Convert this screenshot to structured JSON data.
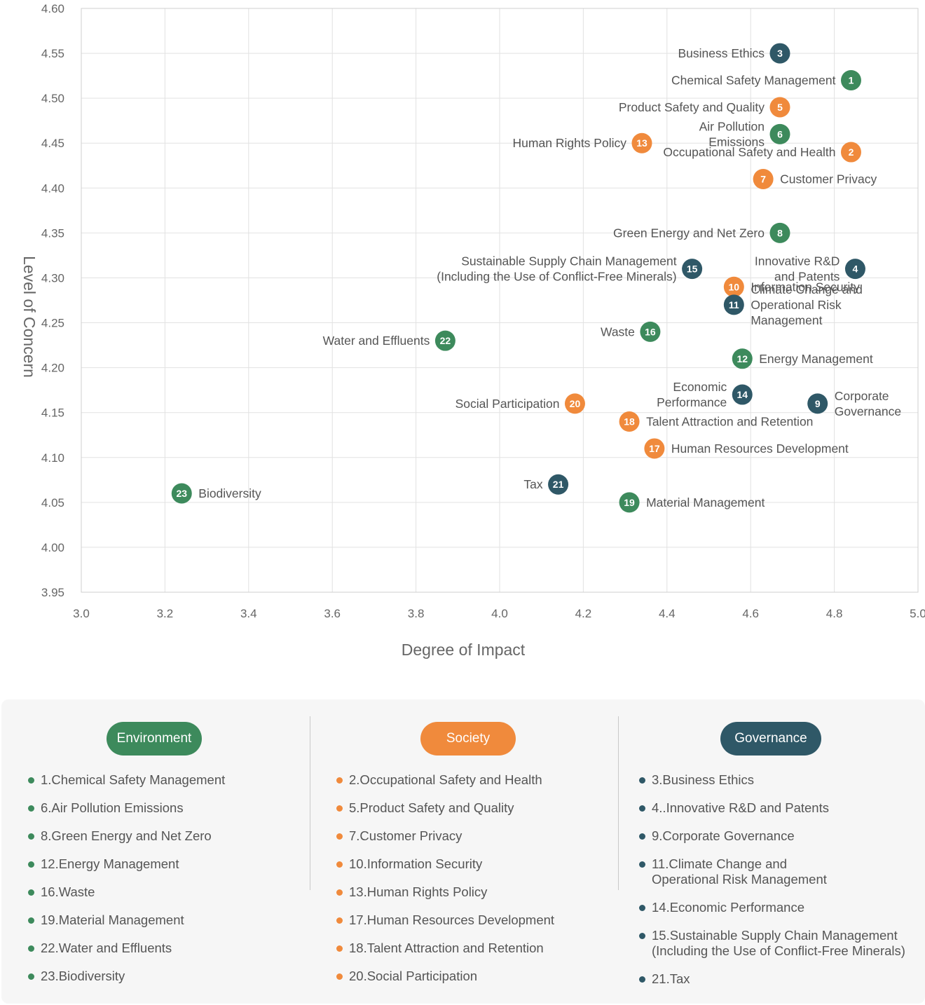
{
  "chart_data": {
    "type": "scatter",
    "xlabel": "Degree of Impact",
    "ylabel": "Level of Concern",
    "xlim": [
      3.0,
      5.0
    ],
    "ylim": [
      3.95,
      4.6
    ],
    "x_ticks": [
      "3.0",
      "3.2",
      "3.4",
      "3.6",
      "3.8",
      "4.0",
      "4.2",
      "4.4",
      "4.6",
      "4.8",
      "5.0"
    ],
    "y_ticks": [
      "3.95",
      "4.00",
      "4.05",
      "4.10",
      "4.15",
      "4.20",
      "4.25",
      "4.30",
      "4.35",
      "4.40",
      "4.45",
      "4.50",
      "4.55",
      "4.60"
    ],
    "grid": true,
    "category_colors": {
      "Environment": "#3d8a5c",
      "Society": "#f08a3c",
      "Governance": "#2f5867"
    },
    "points": [
      {
        "id": 1,
        "category": "Environment",
        "x": 4.84,
        "y": 4.52,
        "label_lines": [
          "Chemical Safety Management"
        ],
        "label_side": "left"
      },
      {
        "id": 2,
        "category": "Society",
        "x": 4.84,
        "y": 4.44,
        "label_lines": [
          "Occupational Safety and Health"
        ],
        "label_side": "left"
      },
      {
        "id": 3,
        "category": "Governance",
        "x": 4.67,
        "y": 4.55,
        "label_lines": [
          "Business Ethics"
        ],
        "label_side": "left"
      },
      {
        "id": 4,
        "category": "Governance",
        "x": 4.85,
        "y": 4.31,
        "label_lines": [
          "Innovative R&D",
          "and Patents"
        ],
        "label_side": "left"
      },
      {
        "id": 5,
        "category": "Society",
        "x": 4.67,
        "y": 4.49,
        "label_lines": [
          "Product Safety and Quality"
        ],
        "label_side": "left"
      },
      {
        "id": 6,
        "category": "Environment",
        "x": 4.67,
        "y": 4.46,
        "label_lines": [
          "Air Pollution",
          "Emissions"
        ],
        "label_side": "left"
      },
      {
        "id": 7,
        "category": "Society",
        "x": 4.63,
        "y": 4.41,
        "label_lines": [
          "Customer Privacy"
        ],
        "label_side": "right"
      },
      {
        "id": 8,
        "category": "Environment",
        "x": 4.67,
        "y": 4.35,
        "label_lines": [
          "Green Energy and Net Zero"
        ],
        "label_side": "left"
      },
      {
        "id": 9,
        "category": "Governance",
        "x": 4.76,
        "y": 4.16,
        "label_lines": [
          "Corporate",
          "Governance"
        ],
        "label_side": "right"
      },
      {
        "id": 10,
        "category": "Society",
        "x": 4.56,
        "y": 4.29,
        "label_lines": [
          "Information Security"
        ],
        "label_side": "right"
      },
      {
        "id": 11,
        "category": "Governance",
        "x": 4.56,
        "y": 4.27,
        "label_lines": [
          "Climate Change and",
          "Operational Risk",
          "Management"
        ],
        "label_side": "right"
      },
      {
        "id": 12,
        "category": "Environment",
        "x": 4.58,
        "y": 4.21,
        "label_lines": [
          "Energy Management"
        ],
        "label_side": "right"
      },
      {
        "id": 13,
        "category": "Society",
        "x": 4.34,
        "y": 4.45,
        "label_lines": [
          "Human Rights Policy"
        ],
        "label_side": "left"
      },
      {
        "id": 14,
        "category": "Governance",
        "x": 4.58,
        "y": 4.17,
        "label_lines": [
          "Economic",
          "Performance"
        ],
        "label_side": "left"
      },
      {
        "id": 15,
        "category": "Governance",
        "x": 4.46,
        "y": 4.31,
        "label_lines": [
          "Sustainable Supply Chain Management",
          "(Including the  Use of Conflict-Free Minerals)"
        ],
        "label_side": "left"
      },
      {
        "id": 16,
        "category": "Environment",
        "x": 4.36,
        "y": 4.24,
        "label_lines": [
          "Waste"
        ],
        "label_side": "left"
      },
      {
        "id": 17,
        "category": "Society",
        "x": 4.37,
        "y": 4.11,
        "label_lines": [
          "Human Resources Development"
        ],
        "label_side": "right"
      },
      {
        "id": 18,
        "category": "Society",
        "x": 4.31,
        "y": 4.14,
        "label_lines": [
          "Talent Attraction and Retention"
        ],
        "label_side": "right"
      },
      {
        "id": 19,
        "category": "Environment",
        "x": 4.31,
        "y": 4.05,
        "label_lines": [
          "Material Management"
        ],
        "label_side": "right"
      },
      {
        "id": 20,
        "category": "Society",
        "x": 4.18,
        "y": 4.16,
        "label_lines": [
          "Social Participation"
        ],
        "label_side": "left"
      },
      {
        "id": 21,
        "category": "Governance",
        "x": 4.14,
        "y": 4.07,
        "label_lines": [
          "Tax"
        ],
        "label_side": "left"
      },
      {
        "id": 22,
        "category": "Environment",
        "x": 3.87,
        "y": 4.23,
        "label_lines": [
          "Water and Effluents"
        ],
        "label_side": "left"
      },
      {
        "id": 23,
        "category": "Environment",
        "x": 3.24,
        "y": 4.06,
        "label_lines": [
          "Biodiversity"
        ],
        "label_side": "right"
      }
    ]
  },
  "legend": {
    "environment": {
      "title": "Environment",
      "color": "#3d8a5c",
      "items": [
        "1.Chemical Safety Management",
        "6.Air Pollution Emissions",
        "8.Green Energy and Net Zero",
        "12.Energy Management",
        "16.Waste",
        "19.Material Management",
        "22.Water and Effluents",
        "23.Biodiversity"
      ]
    },
    "society": {
      "title": "Society",
      "color": "#f08a3c",
      "items": [
        "2.Occupational Safety and Health",
        "5.Product Safety and Quality",
        "7.Customer Privacy",
        "10.Information Security",
        "13.Human Rights Policy",
        "17.Human Resources Development",
        "18.Talent Attraction and Retention",
        "20.Social Participation"
      ]
    },
    "governance": {
      "title": "Governance",
      "color": "#2f5867",
      "items": [
        "3.Business Ethics",
        "4..Innovative R&D and Patents",
        "9.Corporate Governance",
        "11.Climate Change and\nOperational Risk Management",
        "14.Economic Performance",
        "15.Sustainable Supply Chain Management\n(Including the  Use of Conflict-Free Minerals)",
        "21.Tax"
      ]
    }
  }
}
